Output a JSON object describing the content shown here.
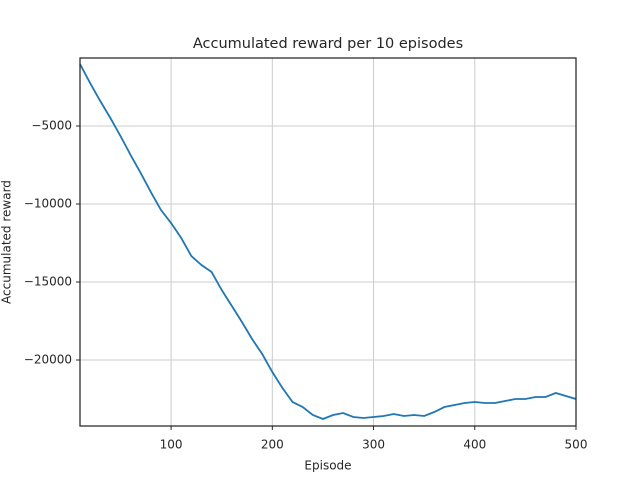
{
  "chart_data": {
    "type": "line",
    "title": "Accumulated reward per 10 episodes",
    "x_label": "Episode",
    "y_label": "Accumulated reward",
    "x": [
      10,
      20,
      30,
      40,
      50,
      60,
      70,
      80,
      90,
      100,
      110,
      120,
      130,
      140,
      150,
      160,
      170,
      180,
      190,
      200,
      210,
      220,
      230,
      240,
      250,
      260,
      270,
      280,
      290,
      300,
      310,
      320,
      330,
      340,
      350,
      360,
      370,
      380,
      390,
      400,
      410,
      420,
      430,
      440,
      450,
      460,
      470,
      480,
      490,
      500
    ],
    "series": [
      {
        "name": "Accumulated reward",
        "color": "#1f77b4",
        "values": [
          -1026,
          -2244,
          -3397,
          -4487,
          -5641,
          -6859,
          -8013,
          -9231,
          -10385,
          -11218,
          -12179,
          -13333,
          -13910,
          -14359,
          -15513,
          -16538,
          -17564,
          -18654,
          -19615,
          -20769,
          -21795,
          -22692,
          -23013,
          -23526,
          -23782,
          -23526,
          -23397,
          -23654,
          -23718,
          -23654,
          -23590,
          -23462,
          -23590,
          -23526,
          -23590,
          -23333,
          -23013,
          -22885,
          -22756,
          -22692,
          -22756,
          -22756,
          -22628,
          -22500,
          -22500,
          -22372,
          -22372,
          -22115,
          -22308,
          -22500
        ]
      }
    ],
    "xlim": [
      10,
      500
    ],
    "ylim": [
      -24230,
      -640
    ],
    "xticks": [
      100,
      200,
      300,
      400,
      500
    ],
    "yticks": [
      {
        "value": -5000,
        "label": "−5000"
      },
      {
        "value": -10000,
        "label": "−10000"
      },
      {
        "value": -15000,
        "label": "−15000"
      },
      {
        "value": -20000,
        "label": "−20000"
      }
    ],
    "grid": true
  }
}
